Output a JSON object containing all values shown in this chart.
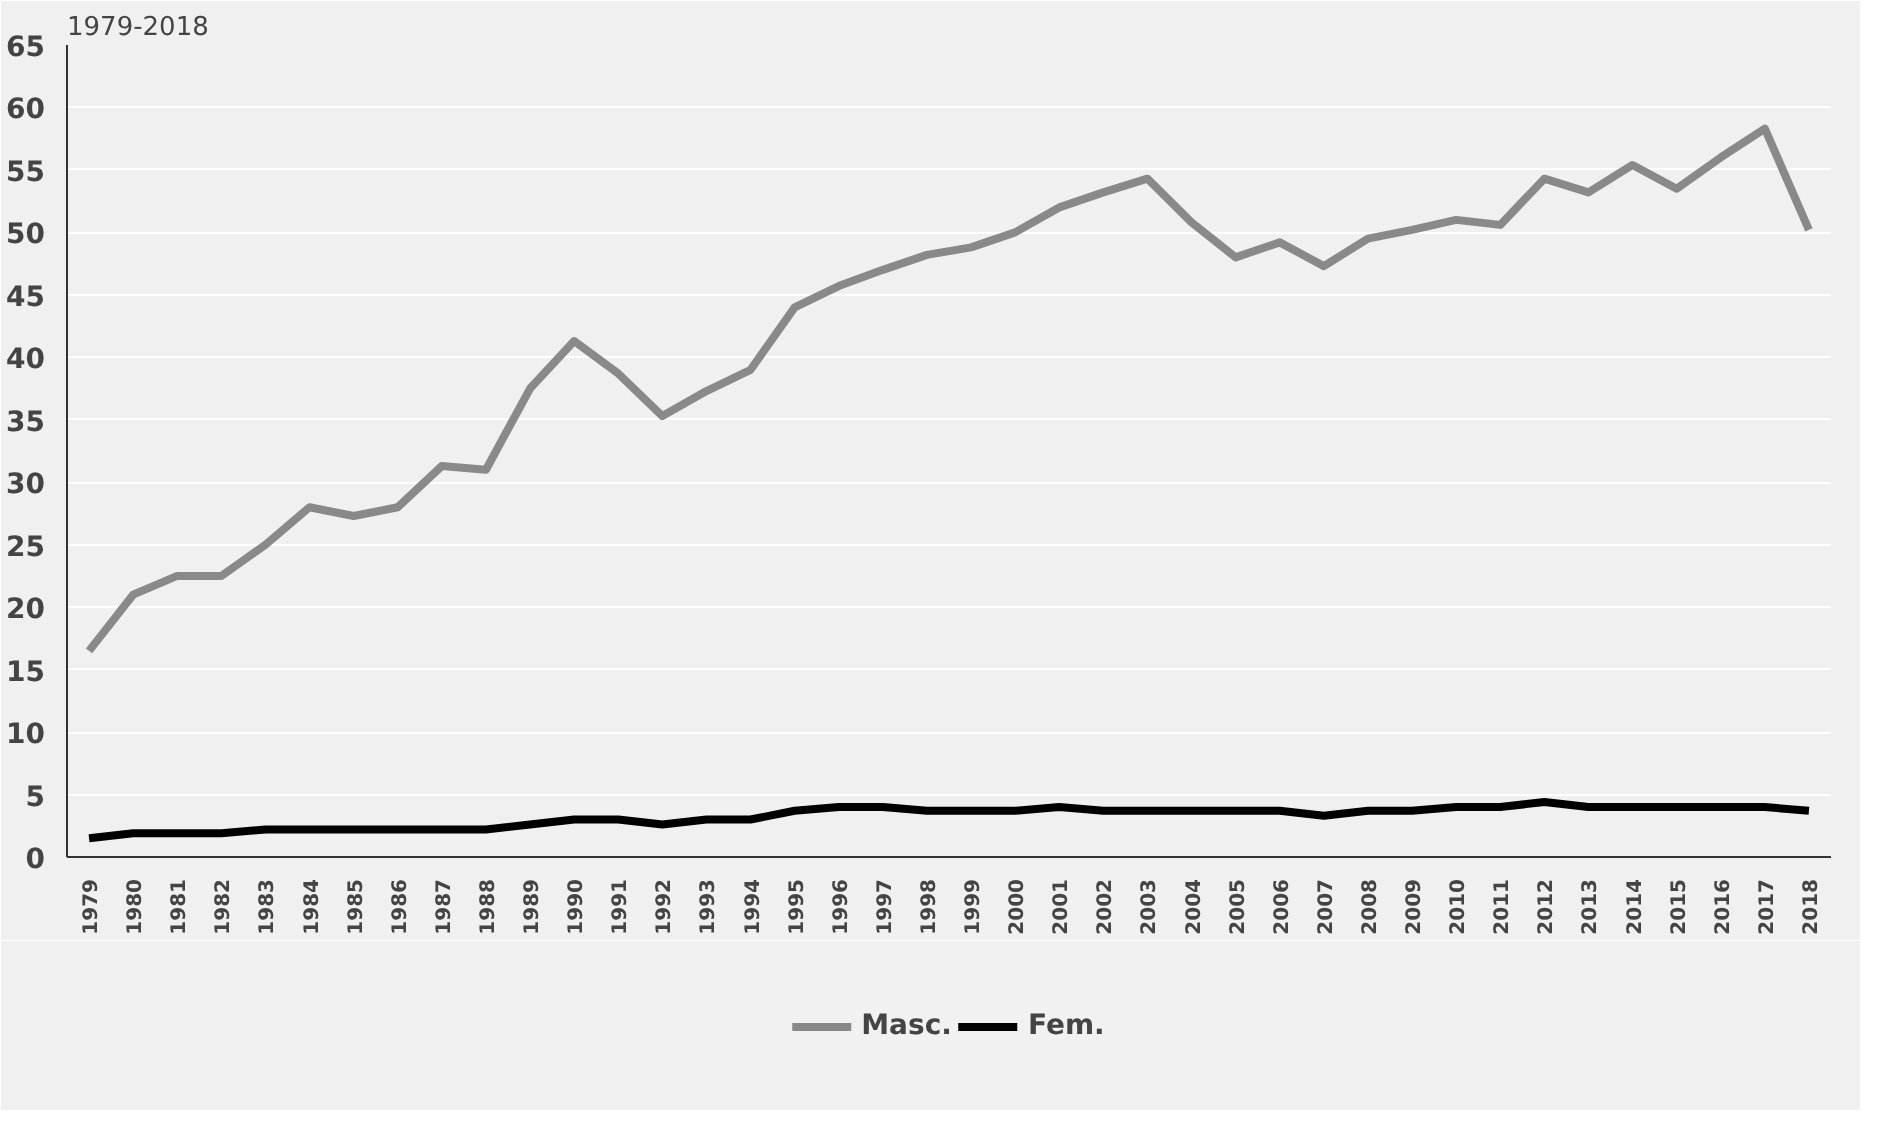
{
  "chart_data": {
    "type": "line",
    "title": "1979-2018",
    "categories": [
      "1979",
      "1980",
      "1981",
      "1982",
      "1983",
      "1984",
      "1985",
      "1986",
      "1987",
      "1988",
      "1989",
      "1990",
      "1991",
      "1992",
      "1993",
      "1994",
      "1995",
      "1996",
      "1997",
      "1998",
      "1999",
      "2000",
      "2001",
      "2002",
      "2003",
      "2004",
      "2005",
      "2006",
      "2007",
      "2008",
      "2009",
      "2010",
      "2011",
      "2012",
      "2013",
      "2014",
      "2015",
      "2016",
      "2017",
      "2018"
    ],
    "series": [
      {
        "name": "Masc.",
        "color": "#898989",
        "values": [
          16.5,
          21,
          22.5,
          22.5,
          25,
          28,
          27.3,
          28,
          31.3,
          31,
          37.5,
          41.3,
          38.7,
          35.3,
          37.3,
          39,
          44,
          45.7,
          47,
          48.2,
          48.8,
          50,
          52,
          53.2,
          54.3,
          50.8,
          48,
          49.2,
          47.3,
          49.5,
          50.2,
          51,
          50.6,
          54.3,
          53.2,
          55.4,
          53.5,
          56,
          58.3,
          50.2
        ]
      },
      {
        "name": "Fem.",
        "color": "#000000",
        "values": [
          1.5,
          1.9,
          1.9,
          1.9,
          2.2,
          2.2,
          2.2,
          2.2,
          2.2,
          2.2,
          2.6,
          3,
          3,
          2.6,
          3,
          3,
          3.7,
          4,
          4,
          3.7,
          3.7,
          3.7,
          4,
          3.7,
          3.7,
          3.7,
          3.7,
          3.7,
          3.3,
          3.7,
          3.7,
          4,
          4,
          4.4,
          4,
          4,
          4,
          4,
          4,
          3.7
        ]
      }
    ],
    "ylim": [
      0,
      65
    ],
    "yticks": [
      0,
      5,
      10,
      15,
      20,
      25,
      30,
      35,
      40,
      45,
      50,
      55,
      60,
      65
    ],
    "grid": "y",
    "legend": "bottom",
    "marker": "none",
    "line_style": "solid"
  }
}
